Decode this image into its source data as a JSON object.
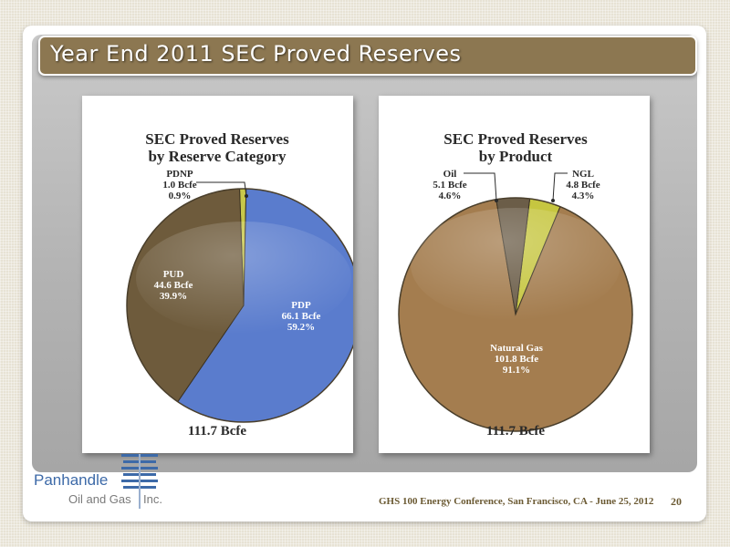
{
  "title": "Year End 2011 SEC Proved Reserves",
  "chart_data": [
    {
      "type": "pie",
      "title_line1": "SEC Proved Reserves",
      "title_line2": "by Reserve Category",
      "total_label": "111.7 Bcfe",
      "slices": [
        {
          "name": "PDNP",
          "amount": "1.0 Bcfe",
          "percent_label": "0.9%",
          "value": 0.9,
          "color": "#c8c84a"
        },
        {
          "name": "PDP",
          "amount": "66.1 Bcfe",
          "percent_label": "59.2%",
          "value": 59.2,
          "color": "#5a7ccd"
        },
        {
          "name": "PUD",
          "amount": "44.6 Bcfe",
          "percent_label": "39.9%",
          "value": 39.9,
          "color": "#6e5b3c"
        }
      ]
    },
    {
      "type": "pie",
      "title_line1": "SEC Proved Reserves",
      "title_line2": "by Product",
      "total_label": "111.7 Bcfe",
      "slices": [
        {
          "name": "NGL",
          "amount": "4.8 Bcfe",
          "percent_label": "4.3%",
          "value": 4.3,
          "color": "#c6c640"
        },
        {
          "name": "Natural Gas",
          "amount": "101.8 Bcfe",
          "percent_label": "91.1%",
          "value": 91.1,
          "color": "#a47d4f"
        },
        {
          "name": "Oil",
          "amount": "5.1 Bcfe",
          "percent_label": "4.6%",
          "value": 4.6,
          "color": "#6b5d48"
        }
      ]
    }
  ],
  "footer": {
    "conference": "GHS 100 Energy Conference, San Francisco, CA - June 25, 2012",
    "page_number": "20"
  },
  "logo": {
    "line1": "Panhandle",
    "line2": "Oil and Gas",
    "line3": "Inc.",
    "colors": {
      "blue": "#3d6aa8",
      "text_gray": "#7a7a7a"
    }
  }
}
